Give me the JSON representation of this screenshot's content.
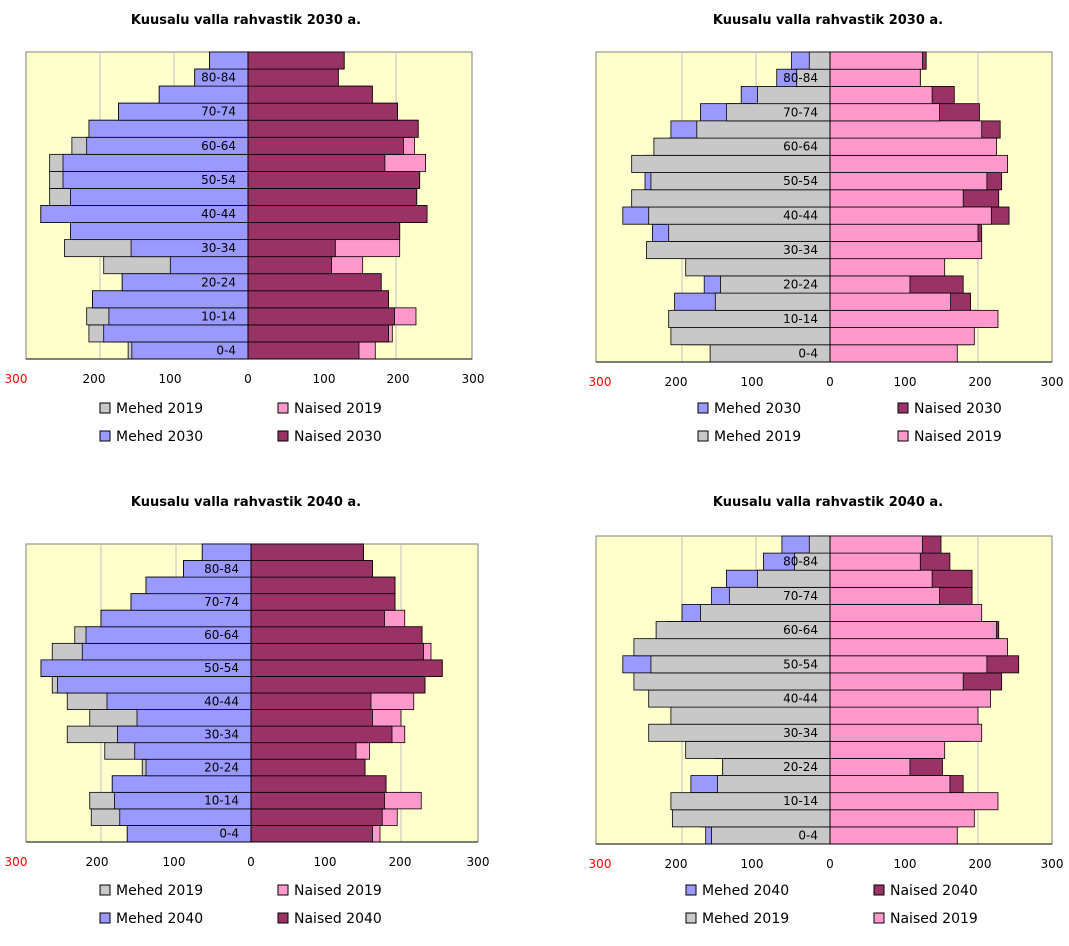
{
  "colors": {
    "plot_bg": "#ffffcc",
    "mehed_2019": "#c8c8c8",
    "naised_2019": "#ff99cc",
    "mehed_proj": "#9999ff",
    "naised_proj": "#993366",
    "grid": "#c0c0c0"
  },
  "chart_data": [
    {
      "type": "bar",
      "title": "Kuusalu valla rahvastik 2030 a.",
      "categories": [
        "0-4",
        "5-9",
        "10-14",
        "15-19",
        "20-24",
        "25-29",
        "30-34",
        "35-39",
        "40-44",
        "45-49",
        "50-54",
        "55-59",
        "60-64",
        "65-69",
        "70-74",
        "75-79",
        "80-84",
        "85+"
      ],
      "category_labels": [
        "0-4",
        "",
        "10-14",
        "",
        "20-24",
        "",
        "30-34",
        "",
        "40-44",
        "",
        "50-54",
        "",
        "60-64",
        "",
        "70-74",
        "",
        "80-84",
        ""
      ],
      "xlim": [
        -300,
        300
      ],
      "xticks": [
        "300",
        "200",
        "100",
        "0",
        "100",
        "200",
        "300"
      ],
      "series": [
        {
          "name": "Mehed 2019",
          "side": "left",
          "color": "#c8c8c8",
          "values": [
            162,
            215,
            218,
            210,
            170,
            195,
            248,
            240,
            280,
            268,
            268,
            268,
            238,
            215,
            175,
            120,
            72,
            52
          ]
        },
        {
          "name": "Naised 2019",
          "side": "right",
          "color": "#ff99cc",
          "values": [
            172,
            195,
            227,
            190,
            180,
            155,
            205,
            205,
            242,
            228,
            232,
            240,
            225,
            230,
            202,
            168,
            122,
            130
          ]
        },
        {
          "name": "Mehed 2030",
          "side": "left",
          "color": "#9999ff",
          "values": [
            157,
            195,
            188,
            210,
            170,
            105,
            158,
            240,
            280,
            240,
            250,
            250,
            218,
            215,
            175,
            120,
            72,
            52
          ]
        },
        {
          "name": "Naised 2030",
          "side": "right",
          "color": "#993366",
          "values": [
            150,
            190,
            198,
            190,
            180,
            113,
            118,
            205,
            242,
            228,
            232,
            185,
            210,
            230,
            202,
            168,
            122,
            130
          ]
        }
      ],
      "legend": [
        {
          "name": "Mehed 2019",
          "color": "#c8c8c8"
        },
        {
          "name": "Naised 2019",
          "color": "#ff99cc"
        },
        {
          "name": "Mehed 2030",
          "color": "#9999ff"
        },
        {
          "name": "Naised 2030",
          "color": "#993366"
        }
      ]
    },
    {
      "type": "bar",
      "title": "Kuusalu valla rahvastik 2030 a.",
      "categories": [
        "0-4",
        "5-9",
        "10-14",
        "15-19",
        "20-24",
        "25-29",
        "30-34",
        "35-39",
        "40-44",
        "45-49",
        "50-54",
        "55-59",
        "60-64",
        "65-69",
        "70-74",
        "75-79",
        "80-84",
        "85+"
      ],
      "category_labels": [
        "0-4",
        "",
        "10-14",
        "",
        "20-24",
        "",
        "30-34",
        "",
        "40-44",
        "",
        "50-54",
        "",
        "60-64",
        "",
        "70-74",
        "",
        "80-84",
        ""
      ],
      "xlim": [
        -300,
        300
      ],
      "xticks": [
        "300",
        "200",
        "100",
        "0",
        "100",
        "200",
        "300"
      ],
      "series": [
        {
          "name": "Mehed 2030",
          "side": "left",
          "color": "#9999ff",
          "values": [
            157,
            195,
            188,
            210,
            170,
            105,
            158,
            240,
            280,
            240,
            250,
            250,
            218,
            215,
            175,
            120,
            72,
            52
          ]
        },
        {
          "name": "Naised 2030",
          "side": "right",
          "color": "#993366",
          "values": [
            150,
            190,
            198,
            190,
            180,
            113,
            118,
            205,
            242,
            228,
            232,
            185,
            210,
            230,
            202,
            168,
            122,
            130
          ]
        },
        {
          "name": "Mehed 2019",
          "side": "left",
          "color": "#c8c8c8",
          "values": [
            162,
            215,
            218,
            155,
            148,
            195,
            248,
            218,
            245,
            268,
            242,
            268,
            238,
            180,
            140,
            98,
            45,
            28
          ]
        },
        {
          "name": "Naised 2019",
          "side": "right",
          "color": "#ff99cc",
          "values": [
            172,
            195,
            227,
            163,
            108,
            155,
            205,
            200,
            218,
            180,
            212,
            240,
            225,
            205,
            148,
            138,
            122,
            125
          ]
        }
      ],
      "legend": [
        {
          "name": "Mehed 2030",
          "color": "#9999ff"
        },
        {
          "name": "Naised 2030",
          "color": "#993366"
        },
        {
          "name": "Mehed 2019",
          "color": "#c8c8c8"
        },
        {
          "name": "Naised 2019",
          "color": "#ff99cc"
        }
      ]
    },
    {
      "type": "bar",
      "title": "Kuusalu valla rahvastik 2040 a.",
      "categories": [
        "0-4",
        "5-9",
        "10-14",
        "15-19",
        "20-24",
        "25-29",
        "30-34",
        "35-39",
        "40-44",
        "45-49",
        "50-54",
        "55-59",
        "60-64",
        "65-69",
        "70-74",
        "75-79",
        "80-84",
        "85+"
      ],
      "category_labels": [
        "0-4",
        "",
        "10-14",
        "",
        "20-24",
        "",
        "30-34",
        "",
        "40-44",
        "",
        "50-54",
        "",
        "60-64",
        "",
        "70-74",
        "",
        "80-84",
        ""
      ],
      "xlim": [
        -300,
        300
      ],
      "xticks": [
        "300",
        "200",
        "100",
        "0",
        "100",
        "200",
        "300"
      ],
      "series": [
        {
          "name": "Mehed 2019",
          "side": "left",
          "color": "#c8c8c8",
          "values": [
            165,
            213,
            215,
            185,
            145,
            195,
            245,
            215,
            245,
            265,
            280,
            265,
            235,
            200,
            160,
            140,
            90,
            65
          ]
        },
        {
          "name": "Naised 2019",
          "side": "right",
          "color": "#ff99cc",
          "values": [
            172,
            195,
            227,
            180,
            152,
            158,
            205,
            200,
            217,
            232,
            255,
            240,
            228,
            205,
            192,
            192,
            162,
            150
          ]
        },
        {
          "name": "Mehed 2040",
          "side": "left",
          "color": "#9999ff",
          "values": [
            165,
            175,
            182,
            185,
            140,
            155,
            178,
            152,
            192,
            258,
            280,
            225,
            220,
            200,
            160,
            140,
            90,
            65
          ]
        },
        {
          "name": "Naised 2040",
          "side": "right",
          "color": "#993366",
          "values": [
            162,
            175,
            178,
            180,
            152,
            140,
            188,
            162,
            160,
            232,
            255,
            230,
            228,
            178,
            192,
            192,
            162,
            150
          ]
        }
      ],
      "legend": [
        {
          "name": "Mehed 2019",
          "color": "#c8c8c8"
        },
        {
          "name": "Naised 2019",
          "color": "#ff99cc"
        },
        {
          "name": "Mehed 2040",
          "color": "#9999ff"
        },
        {
          "name": "Naised 2040",
          "color": "#993366"
        }
      ]
    },
    {
      "type": "bar",
      "title": "Kuusalu valla rahvastik 2040 a.",
      "categories": [
        "0-4",
        "5-9",
        "10-14",
        "15-19",
        "20-24",
        "25-29",
        "30-34",
        "35-39",
        "40-44",
        "45-49",
        "50-54",
        "55-59",
        "60-64",
        "65-69",
        "70-74",
        "75-79",
        "80-84",
        "85+"
      ],
      "category_labels": [
        "0-4",
        "",
        "10-14",
        "",
        "20-24",
        "",
        "30-34",
        "",
        "40-44",
        "",
        "50-54",
        "",
        "60-64",
        "",
        "70-74",
        "",
        "80-84",
        ""
      ],
      "xlim": [
        -300,
        300
      ],
      "xticks": [
        "300",
        "200",
        "100",
        "0",
        "100",
        "200",
        "300"
      ],
      "series": [
        {
          "name": "Mehed 2040",
          "side": "left",
          "color": "#9999ff",
          "values": [
            168,
            175,
            182,
            188,
            145,
            155,
            178,
            152,
            192,
            258,
            280,
            225,
            220,
            200,
            160,
            140,
            90,
            65
          ]
        },
        {
          "name": "Naised 2040",
          "side": "right",
          "color": "#993366",
          "values": [
            162,
            175,
            178,
            180,
            152,
            140,
            188,
            162,
            160,
            232,
            255,
            230,
            228,
            178,
            192,
            192,
            162,
            150
          ]
        },
        {
          "name": "Mehed 2019",
          "side": "left",
          "color": "#c8c8c8",
          "values": [
            160,
            213,
            215,
            152,
            145,
            195,
            245,
            215,
            245,
            265,
            242,
            265,
            235,
            175,
            136,
            98,
            48,
            28
          ]
        },
        {
          "name": "Naised 2019",
          "side": "right",
          "color": "#ff99cc",
          "values": [
            172,
            195,
            227,
            162,
            108,
            155,
            205,
            200,
            217,
            180,
            212,
            240,
            225,
            205,
            148,
            138,
            122,
            125
          ]
        }
      ],
      "legend": [
        {
          "name": "Mehed 2040",
          "color": "#9999ff"
        },
        {
          "name": "Naised 2040",
          "color": "#993366"
        },
        {
          "name": "Mehed 2019",
          "color": "#c8c8c8"
        },
        {
          "name": "Naised 2019",
          "color": "#ff99cc"
        }
      ]
    }
  ]
}
